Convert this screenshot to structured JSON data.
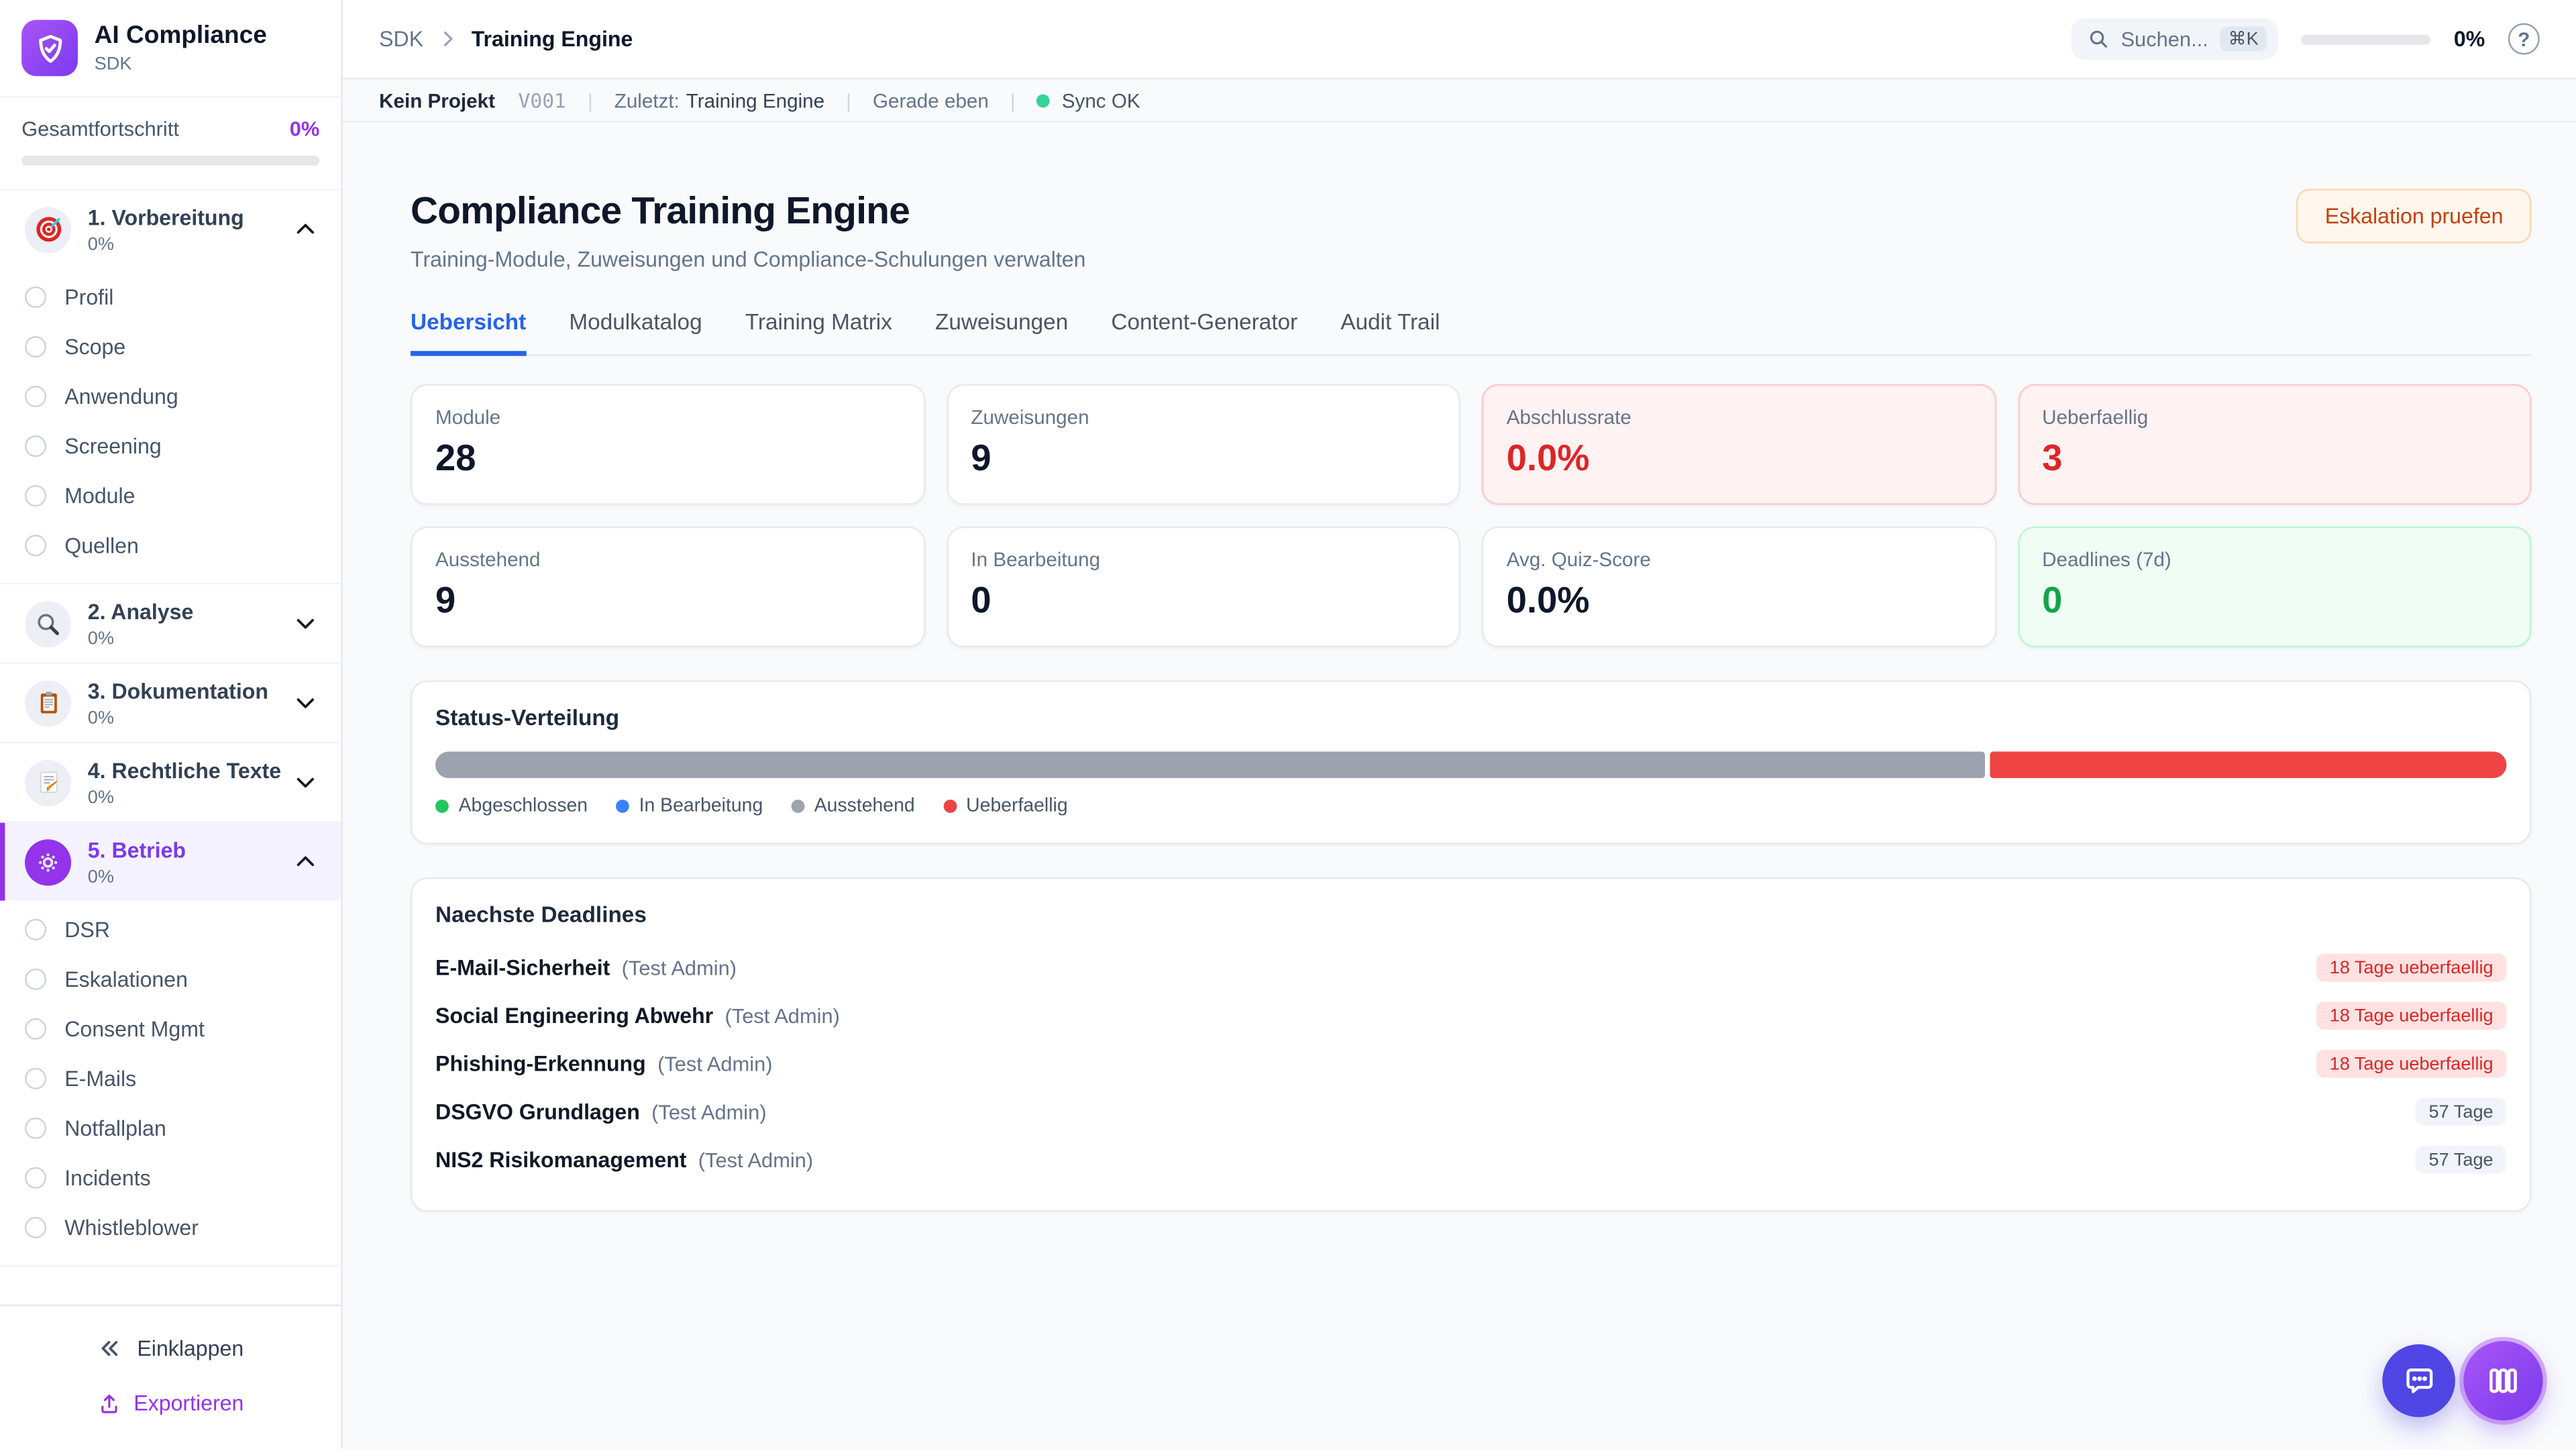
{
  "sidebar": {
    "app_title": "AI Compliance",
    "app_subtitle": "SDK",
    "overall_label": "Gesamtfortschritt",
    "overall_value": "0%",
    "overall_progress_pct": 0,
    "sections": [
      {
        "icon": "target-icon",
        "label": "1. Vorbereitung",
        "progress": "0%",
        "expanded": true,
        "active": false,
        "items": [
          "Profil",
          "Scope",
          "Anwendung",
          "Screening",
          "Module",
          "Quellen"
        ]
      },
      {
        "icon": "magnifier-icon",
        "label": "2. Analyse",
        "progress": "0%",
        "expanded": false,
        "active": false,
        "items": []
      },
      {
        "icon": "clipboard-icon",
        "label": "3. Dokumentation",
        "progress": "0%",
        "expanded": false,
        "active": false,
        "items": []
      },
      {
        "icon": "memo-icon",
        "label": "4. Rechtliche Texte",
        "progress": "0%",
        "expanded": false,
        "active": false,
        "items": []
      },
      {
        "icon": "gear-icon",
        "label": "5. Betrieb",
        "progress": "0%",
        "expanded": true,
        "active": true,
        "items": [
          "DSR",
          "Eskalationen",
          "Consent Mgmt",
          "E-Mails",
          "Notfallplan",
          "Incidents",
          "Whistleblower"
        ]
      }
    ],
    "collapse_label": "Einklappen",
    "export_label": "Exportieren"
  },
  "header": {
    "breadcrumb_root": "SDK",
    "breadcrumb_current": "Training Engine",
    "search_placeholder": "Suchen...",
    "search_shortcut": "⌘K",
    "progress_value": "0%",
    "progress_pct": 0,
    "help_label": "?"
  },
  "statusbar": {
    "project": "Kein Projekt",
    "version": "V001",
    "last_label": "Zuletzt:",
    "last_value": "Training Engine",
    "time": "Gerade eben",
    "sync": "Sync OK",
    "sync_color": "#34d399"
  },
  "main": {
    "title": "Compliance Training Engine",
    "subtitle": "Training-Module, Zuweisungen und Compliance-Schulungen verwalten",
    "action_button": "Eskalation pruefen",
    "tabs": [
      {
        "label": "Uebersicht",
        "active": true
      },
      {
        "label": "Modulkatalog",
        "active": false
      },
      {
        "label": "Training Matrix",
        "active": false
      },
      {
        "label": "Zuweisungen",
        "active": false
      },
      {
        "label": "Content-Generator",
        "active": false
      },
      {
        "label": "Audit Trail",
        "active": false
      }
    ],
    "stats": [
      {
        "label": "Module",
        "value": "28",
        "variant": "default"
      },
      {
        "label": "Zuweisungen",
        "value": "9",
        "variant": "default"
      },
      {
        "label": "Abschlussrate",
        "value": "0.0%",
        "variant": "danger"
      },
      {
        "label": "Ueberfaellig",
        "value": "3",
        "variant": "danger"
      },
      {
        "label": "Ausstehend",
        "value": "9",
        "variant": "default"
      },
      {
        "label": "In Bearbeitung",
        "value": "0",
        "variant": "default"
      },
      {
        "label": "Avg. Quiz-Score",
        "value": "0.0%",
        "variant": "default"
      },
      {
        "label": "Deadlines (7d)",
        "value": "0",
        "variant": "success"
      }
    ]
  },
  "chart_data": {
    "type": "bar",
    "title": "Status-Verteilung",
    "segments": [
      {
        "name": "Ausstehend",
        "pct": 75,
        "color": "#9ca3af"
      },
      {
        "name": "Ueberfaellig",
        "pct": 25,
        "color": "#ef4444"
      }
    ],
    "legend": [
      {
        "label": "Abgeschlossen",
        "color": "#22c55e"
      },
      {
        "label": "In Bearbeitung",
        "color": "#3b82f6"
      },
      {
        "label": "Ausstehend",
        "color": "#9ca3af"
      },
      {
        "label": "Ueberfaellig",
        "color": "#ef4444"
      }
    ]
  },
  "deadlines": {
    "title": "Naechste Deadlines",
    "items": [
      {
        "name": "E-Mail-Sicherheit",
        "assignee": "(Test Admin)",
        "badge": "18 Tage ueberfaellig",
        "overdue": true
      },
      {
        "name": "Social Engineering Abwehr",
        "assignee": "(Test Admin)",
        "badge": "18 Tage ueberfaellig",
        "overdue": true
      },
      {
        "name": "Phishing-Erkennung",
        "assignee": "(Test Admin)",
        "badge": "18 Tage ueberfaellig",
        "overdue": true
      },
      {
        "name": "DSGVO Grundlagen",
        "assignee": "(Test Admin)",
        "badge": "57 Tage",
        "overdue": false
      },
      {
        "name": "NIS2 Risikomanagement",
        "assignee": "(Test Admin)",
        "badge": "57 Tage",
        "overdue": false
      }
    ]
  }
}
